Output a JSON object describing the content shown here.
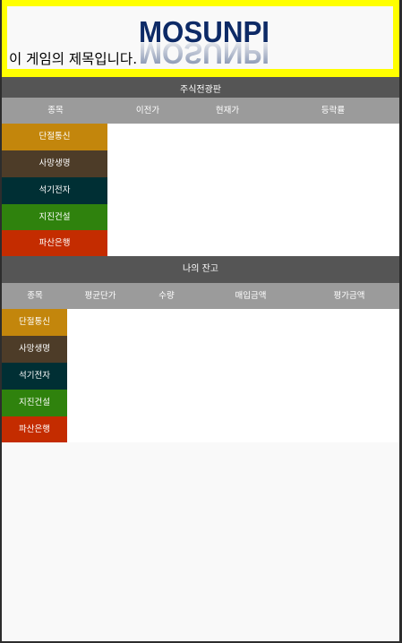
{
  "header": {
    "logo_text": "MOSUNPI",
    "game_title": "이 게임의 제목입니다."
  },
  "board": {
    "title": "주식전광판",
    "columns": [
      "종목",
      "이전가",
      "현재가",
      "등락률"
    ]
  },
  "portfolio": {
    "title": "나의 잔고",
    "columns": [
      "종목",
      "평균단가",
      "수량",
      "매입금액",
      "평가금액"
    ]
  },
  "stocks": [
    {
      "name": "단절통신",
      "color": "#c3860c"
    },
    {
      "name": "사망생명",
      "color": "#4d3c28"
    },
    {
      "name": "석기전자",
      "color": "#002f34"
    },
    {
      "name": "지진건설",
      "color": "#2f820d"
    },
    {
      "name": "파산은행",
      "color": "#c42c00"
    }
  ],
  "colors": {
    "header_border": "#ffff00",
    "section_bar": "#555555",
    "column_bar": "#9b9b9b",
    "logo": "#0d2a66"
  }
}
